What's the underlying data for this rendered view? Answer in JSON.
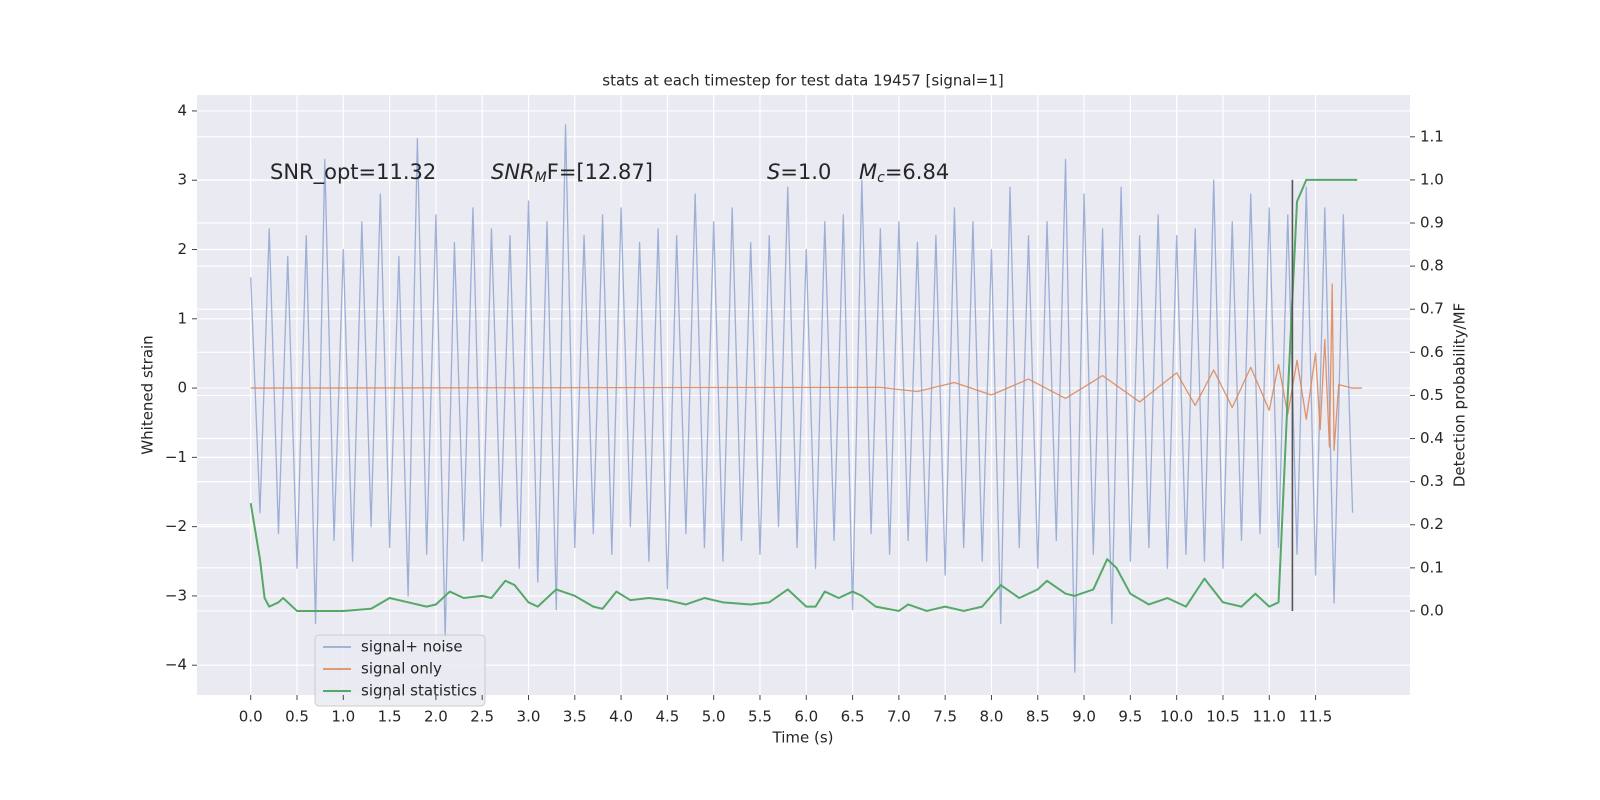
{
  "chart_data": {
    "type": "line",
    "title": "stats at each timestep for test data 19457 [signal=1]",
    "xlabel": "Time (s)",
    "ylabel": "Whitened strain",
    "y2label": "Detection probability/MF",
    "xlim": [
      -0.58,
      12.52
    ],
    "ylim": [
      -4.43,
      4.23
    ],
    "y2lim": [
      -0.195,
      1.197
    ],
    "xticks": [
      {
        "value": 0,
        "label": "0.0"
      },
      0.5,
      {
        "value": 1,
        "label": "1.0"
      },
      1.5,
      {
        "value": 2,
        "label": "2.0"
      },
      2.5,
      {
        "value": 3,
        "label": "3.0"
      },
      3.5,
      {
        "value": 4,
        "label": "4.0"
      },
      4.5,
      {
        "value": 5,
        "label": "5.0"
      },
      5.5,
      {
        "value": 6,
        "label": "6.0"
      },
      6.5,
      {
        "value": 7,
        "label": "7.0"
      },
      7.5,
      {
        "value": 8,
        "label": "8.0"
      },
      8.5,
      {
        "value": 9,
        "label": "9.0"
      },
      9.5,
      {
        "value": 10,
        "label": "10.0"
      },
      10.5,
      {
        "value": 11,
        "label": "11.0"
      },
      11.5
    ],
    "yticks": [
      {
        "value": -4,
        "label": "−4"
      },
      {
        "value": -3,
        "label": "−3"
      },
      {
        "value": -2,
        "label": "−2"
      },
      {
        "value": -1,
        "label": "−1"
      },
      0,
      1,
      2,
      3,
      4
    ],
    "y2ticks": [
      {
        "value": 0,
        "label": "0.0"
      },
      0.1,
      0.2,
      0.3,
      0.4,
      0.5,
      0.6,
      0.7,
      0.8,
      0.9,
      {
        "value": 1,
        "label": "1.0"
      },
      1.1
    ],
    "grid": true,
    "legend": "lower left",
    "annotations": [
      [
        "SNR_opt=11.32"
      ],
      [
        "SNR",
        "M",
        "F=[12.87]"
      ],
      [
        "S",
        "=1.0"
      ],
      [
        "M",
        "c",
        "=6.84"
      ]
    ],
    "vline_x": 11.25,
    "vline_y2": [
      0,
      1
    ],
    "vline_color": "#555555",
    "series": [
      {
        "name": "signal+ noise",
        "color": "#8fa5d0",
        "x": [
          0.0,
          0.1,
          0.2,
          0.3,
          0.4,
          0.5,
          0.6,
          0.7,
          0.8,
          0.9,
          1.0,
          1.1,
          1.2,
          1.3,
          1.4,
          1.5,
          1.6,
          1.7,
          1.8,
          1.9,
          2.0,
          2.1,
          2.2,
          2.3,
          2.4,
          2.5,
          2.6,
          2.7,
          2.8,
          2.9,
          3.0,
          3.1,
          3.2,
          3.3,
          3.4,
          3.5,
          3.6,
          3.7,
          3.8,
          3.9,
          4.0,
          4.1,
          4.2,
          4.3,
          4.4,
          4.5,
          4.6,
          4.7,
          4.8,
          4.9,
          5.0,
          5.1,
          5.2,
          5.3,
          5.4,
          5.5,
          5.6,
          5.7,
          5.8,
          5.9,
          6.0,
          6.1,
          6.2,
          6.3,
          6.4,
          6.5,
          6.6,
          6.7,
          6.8,
          6.9,
          7.0,
          7.1,
          7.2,
          7.3,
          7.4,
          7.5,
          7.6,
          7.7,
          7.8,
          7.9,
          8.0,
          8.1,
          8.2,
          8.3,
          8.4,
          8.5,
          8.6,
          8.7,
          8.8,
          8.9,
          9.0,
          9.1,
          9.2,
          9.3,
          9.4,
          9.5,
          9.6,
          9.7,
          9.8,
          9.9,
          10.0,
          10.1,
          10.2,
          10.3,
          10.4,
          10.5,
          10.6,
          10.7,
          10.8,
          10.9,
          11.0,
          11.1,
          11.2,
          11.3,
          11.4,
          11.5,
          11.6,
          11.7,
          11.8,
          11.9
        ],
        "values": [
          1.6,
          -1.8,
          2.3,
          -2.1,
          1.9,
          -2.6,
          2.2,
          -3.4,
          3.3,
          -2.2,
          2.0,
          -2.5,
          2.4,
          -2.0,
          2.8,
          -2.3,
          1.9,
          -3.0,
          3.6,
          -2.4,
          2.5,
          -3.6,
          2.1,
          -2.2,
          2.6,
          -2.5,
          2.3,
          -2.0,
          2.2,
          -2.6,
          2.7,
          -2.8,
          2.4,
          -3.2,
          3.8,
          -2.3,
          2.2,
          -2.1,
          2.5,
          -2.4,
          2.6,
          -2.0,
          2.1,
          -2.5,
          2.3,
          -2.9,
          2.2,
          -2.1,
          2.8,
          -2.3,
          2.4,
          -2.5,
          2.6,
          -2.2,
          2.1,
          -2.4,
          2.2,
          -2.0,
          2.9,
          -2.3,
          2.0,
          -2.6,
          2.4,
          -2.2,
          2.5,
          -3.2,
          3.0,
          -2.1,
          2.3,
          -2.4,
          2.4,
          -2.2,
          2.1,
          -2.5,
          2.2,
          -2.7,
          2.6,
          -2.3,
          2.4,
          -2.5,
          2.0,
          -3.4,
          2.9,
          -2.3,
          2.2,
          -2.6,
          2.4,
          -2.2,
          3.3,
          -4.1,
          2.8,
          -2.4,
          2.3,
          -3.4,
          2.9,
          -2.5,
          2.2,
          -2.3,
          2.5,
          -2.6,
          2.2,
          -2.4,
          2.3,
          -2.5,
          3.0,
          -2.6,
          2.4,
          -2.2,
          2.8,
          -2.1,
          2.6,
          -2.3,
          2.5,
          -2.4,
          2.9,
          -2.7,
          2.6,
          -3.1,
          2.5,
          -1.8
        ]
      },
      {
        "name": "signal only",
        "color": "#dd8452",
        "x": [
          0,
          6.8,
          7.2,
          7.6,
          8.0,
          8.4,
          8.8,
          9.2,
          9.6,
          10.0,
          10.2,
          10.4,
          10.6,
          10.8,
          11.0,
          11.1,
          11.2,
          11.3,
          11.4,
          11.5,
          11.55,
          11.6,
          11.65,
          11.68,
          11.7,
          11.75,
          11.9,
          12.0
        ],
        "values": [
          0,
          0.01,
          -0.05,
          0.08,
          -0.1,
          0.13,
          -0.15,
          0.18,
          -0.2,
          0.22,
          -0.25,
          0.26,
          -0.28,
          0.3,
          -0.32,
          0.34,
          -0.38,
          0.4,
          -0.45,
          0.5,
          -0.6,
          0.7,
          -0.85,
          1.5,
          -0.9,
          0.05,
          0,
          0
        ]
      },
      {
        "name": "signal statistics",
        "color": "#55a868",
        "axis": "y2",
        "x": [
          0,
          0.1,
          0.15,
          0.2,
          0.3,
          0.35,
          0.5,
          0.7,
          1.0,
          1.3,
          1.5,
          1.7,
          1.9,
          2.0,
          2.15,
          2.3,
          2.5,
          2.6,
          2.75,
          2.85,
          3.0,
          3.1,
          3.3,
          3.5,
          3.7,
          3.8,
          3.95,
          4.1,
          4.3,
          4.5,
          4.7,
          4.9,
          5.1,
          5.4,
          5.6,
          5.8,
          6.0,
          6.1,
          6.2,
          6.35,
          6.5,
          6.6,
          6.75,
          7.0,
          7.1,
          7.3,
          7.5,
          7.7,
          7.9,
          8.1,
          8.3,
          8.5,
          8.6,
          8.8,
          8.9,
          9.1,
          9.25,
          9.35,
          9.5,
          9.7,
          9.9,
          10.1,
          10.3,
          10.5,
          10.7,
          10.85,
          11.0,
          11.1,
          11.2,
          11.3,
          11.4,
          11.5,
          11.95
        ],
        "values": [
          0.25,
          0.12,
          0.03,
          0.01,
          0.02,
          0.03,
          0.0,
          0.0,
          0.0,
          0.005,
          0.03,
          0.02,
          0.01,
          0.015,
          0.045,
          0.03,
          0.035,
          0.03,
          0.07,
          0.06,
          0.02,
          0.01,
          0.05,
          0.035,
          0.01,
          0.005,
          0.045,
          0.025,
          0.03,
          0.025,
          0.015,
          0.03,
          0.02,
          0.015,
          0.02,
          0.05,
          0.01,
          0.01,
          0.045,
          0.03,
          0.045,
          0.035,
          0.01,
          0.0,
          0.015,
          0.0,
          0.01,
          0.0,
          0.01,
          0.06,
          0.03,
          0.05,
          0.07,
          0.04,
          0.035,
          0.05,
          0.12,
          0.1,
          0.04,
          0.015,
          0.03,
          0.01,
          0.075,
          0.02,
          0.01,
          0.04,
          0.01,
          0.02,
          0.5,
          0.95,
          1.0,
          1.0,
          1.0
        ]
      }
    ]
  }
}
